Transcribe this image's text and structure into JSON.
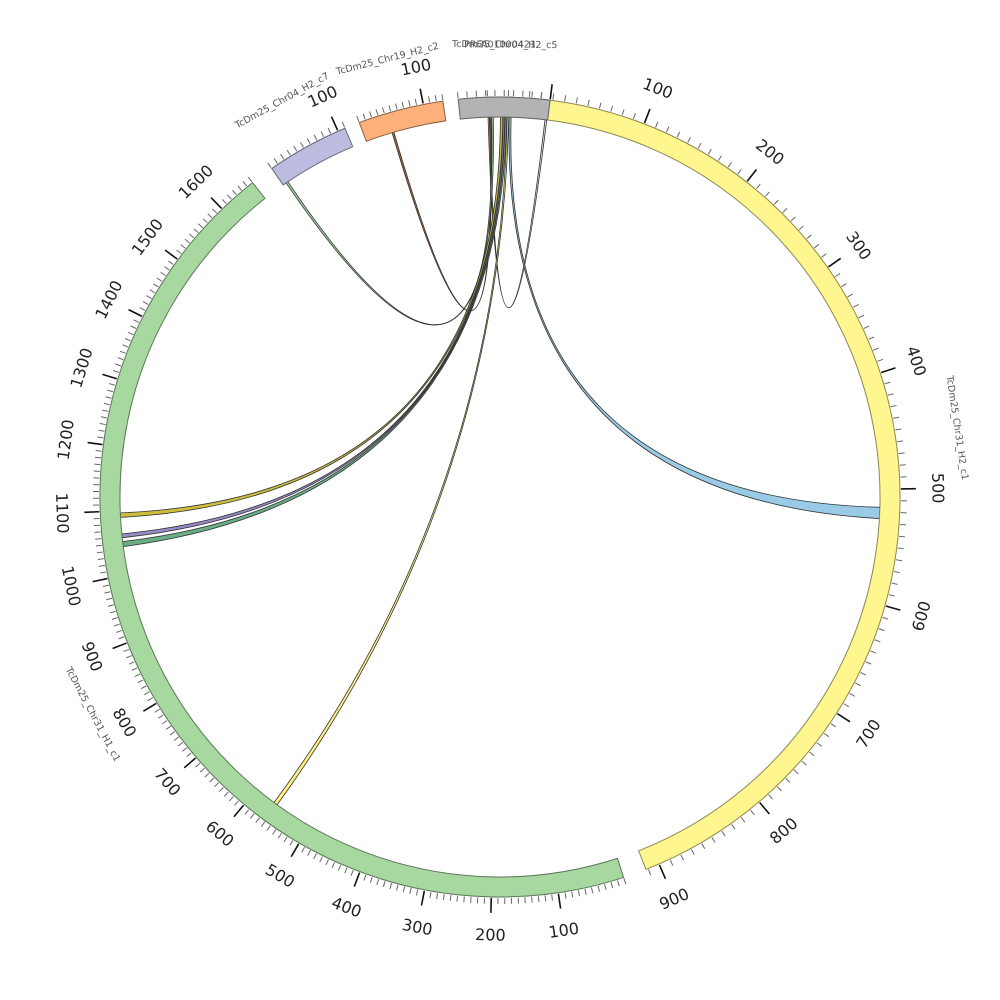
{
  "chart_data": {
    "type": "chord",
    "title": "",
    "segments": [
      {
        "id": "PRFA01000421",
        "label": "PRFA01000421",
        "length": 12,
        "color": "#9ecae1",
        "tick_labels": []
      },
      {
        "id": "chr31_h2",
        "label": "TcDm25_Chr31_H2_c1",
        "length": 912,
        "color": "#fff68f",
        "tick_labels": [
          "100",
          "200",
          "300",
          "400",
          "500",
          "600",
          "700",
          "800",
          "900"
        ]
      },
      {
        "id": "chr31_h1",
        "label": "TcDm25_Chr31_H1_c1",
        "length": 1660,
        "color": "#a6d8a0",
        "tick_labels": [
          "100",
          "200",
          "300",
          "400",
          "500",
          "600",
          "700",
          "800",
          "900",
          "1000",
          "1100",
          "1200",
          "1300",
          "1400",
          "1500",
          "1600"
        ]
      },
      {
        "id": "chr04_c7",
        "label": "TcDm25_Chr04_H2_c7",
        "length": 110,
        "color": "#bcbce0",
        "tick_labels": [
          "100"
        ]
      },
      {
        "id": "chr19_c2",
        "label": "TcDm25_Chr19_H2_c2",
        "length": 130,
        "color": "#fdb07a",
        "tick_labels": [
          "100"
        ]
      },
      {
        "id": "chr04_c5",
        "label": "TcDm25_Chr04_H2_c5",
        "length": 100,
        "color": "#b3b3b3",
        "tick_labels": []
      }
    ],
    "links": [
      {
        "from": "PRFA01000421",
        "from_pos": [
          0,
          0.6
        ],
        "to": "chr04_c5",
        "to_pos": [
          97,
          99
        ],
        "color": "#d9d9d9"
      },
      {
        "from": "PRFA01000421",
        "from_pos": [
          0.8,
          1.4
        ],
        "to": "chr19_c2",
        "to_pos": [
          43,
          46
        ],
        "color": "#a0522d"
      },
      {
        "from": "PRFA01000421",
        "from_pos": [
          1.8,
          2.6
        ],
        "to": "chr04_c7",
        "to_pos": [
          5,
          8
        ],
        "color": "#8fd08f"
      },
      {
        "from": "PRFA01000421",
        "from_pos": [
          6.2,
          7.4
        ],
        "to": "chr31_h1",
        "to_pos": [
          1090,
          1097
        ],
        "color": "#c8b828"
      },
      {
        "from": "PRFA01000421",
        "from_pos": [
          7.6,
          8.4
        ],
        "to": "chr31_h1",
        "to_pos": [
          1058,
          1064
        ],
        "color": "#8e7cc3"
      },
      {
        "from": "PRFA01000421",
        "from_pos": [
          8.6,
          9.4
        ],
        "to": "chr31_h1",
        "to_pos": [
          1044,
          1052
        ],
        "color": "#5aa579"
      },
      {
        "from": "PRFA01000421",
        "from_pos": [
          9.6,
          10.4
        ],
        "to": "chr31_h1",
        "to_pos": [
          560,
          566
        ],
        "color": "#fff176"
      },
      {
        "from": "PRFA01000421",
        "from_pos": [
          10.6,
          11.6
        ],
        "to": "chr31_h2",
        "to_pos": [
          516,
          526
        ],
        "color": "#8ec5e3"
      }
    ]
  }
}
